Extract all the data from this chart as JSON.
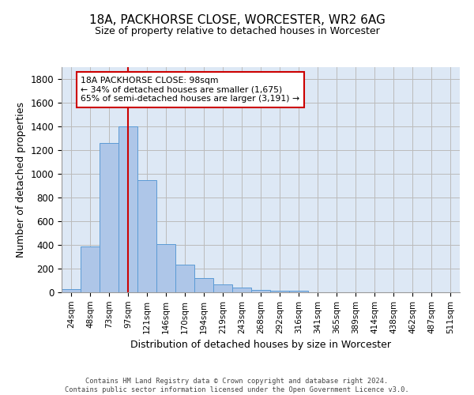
{
  "title": "18A, PACKHORSE CLOSE, WORCESTER, WR2 6AG",
  "subtitle": "Size of property relative to detached houses in Worcester",
  "xlabel": "Distribution of detached houses by size in Worcester",
  "ylabel": "Number of detached properties",
  "bar_color": "#aec6e8",
  "bar_edge_color": "#5b9bd5",
  "categories": [
    "24sqm",
    "48sqm",
    "73sqm",
    "97sqm",
    "121sqm",
    "146sqm",
    "170sqm",
    "194sqm",
    "219sqm",
    "243sqm",
    "268sqm",
    "292sqm",
    "316sqm",
    "341sqm",
    "365sqm",
    "389sqm",
    "414sqm",
    "438sqm",
    "462sqm",
    "487sqm",
    "511sqm"
  ],
  "values": [
    25,
    390,
    1260,
    1400,
    950,
    410,
    235,
    120,
    65,
    42,
    18,
    14,
    14,
    0,
    0,
    0,
    0,
    0,
    0,
    0,
    0
  ],
  "ylim": [
    0,
    1900
  ],
  "yticks": [
    0,
    200,
    400,
    600,
    800,
    1000,
    1200,
    1400,
    1600,
    1800
  ],
  "property_size": 98,
  "pct_smaller": 34,
  "n_smaller": 1675,
  "pct_larger": 65,
  "n_larger": 3191,
  "annotation_box_color": "#cc0000",
  "grid_color": "#cccccc",
  "bg_color": "#dde8f5",
  "footnote1": "Contains HM Land Registry data © Crown copyright and database right 2024.",
  "footnote2": "Contains public sector information licensed under the Open Government Licence v3.0."
}
